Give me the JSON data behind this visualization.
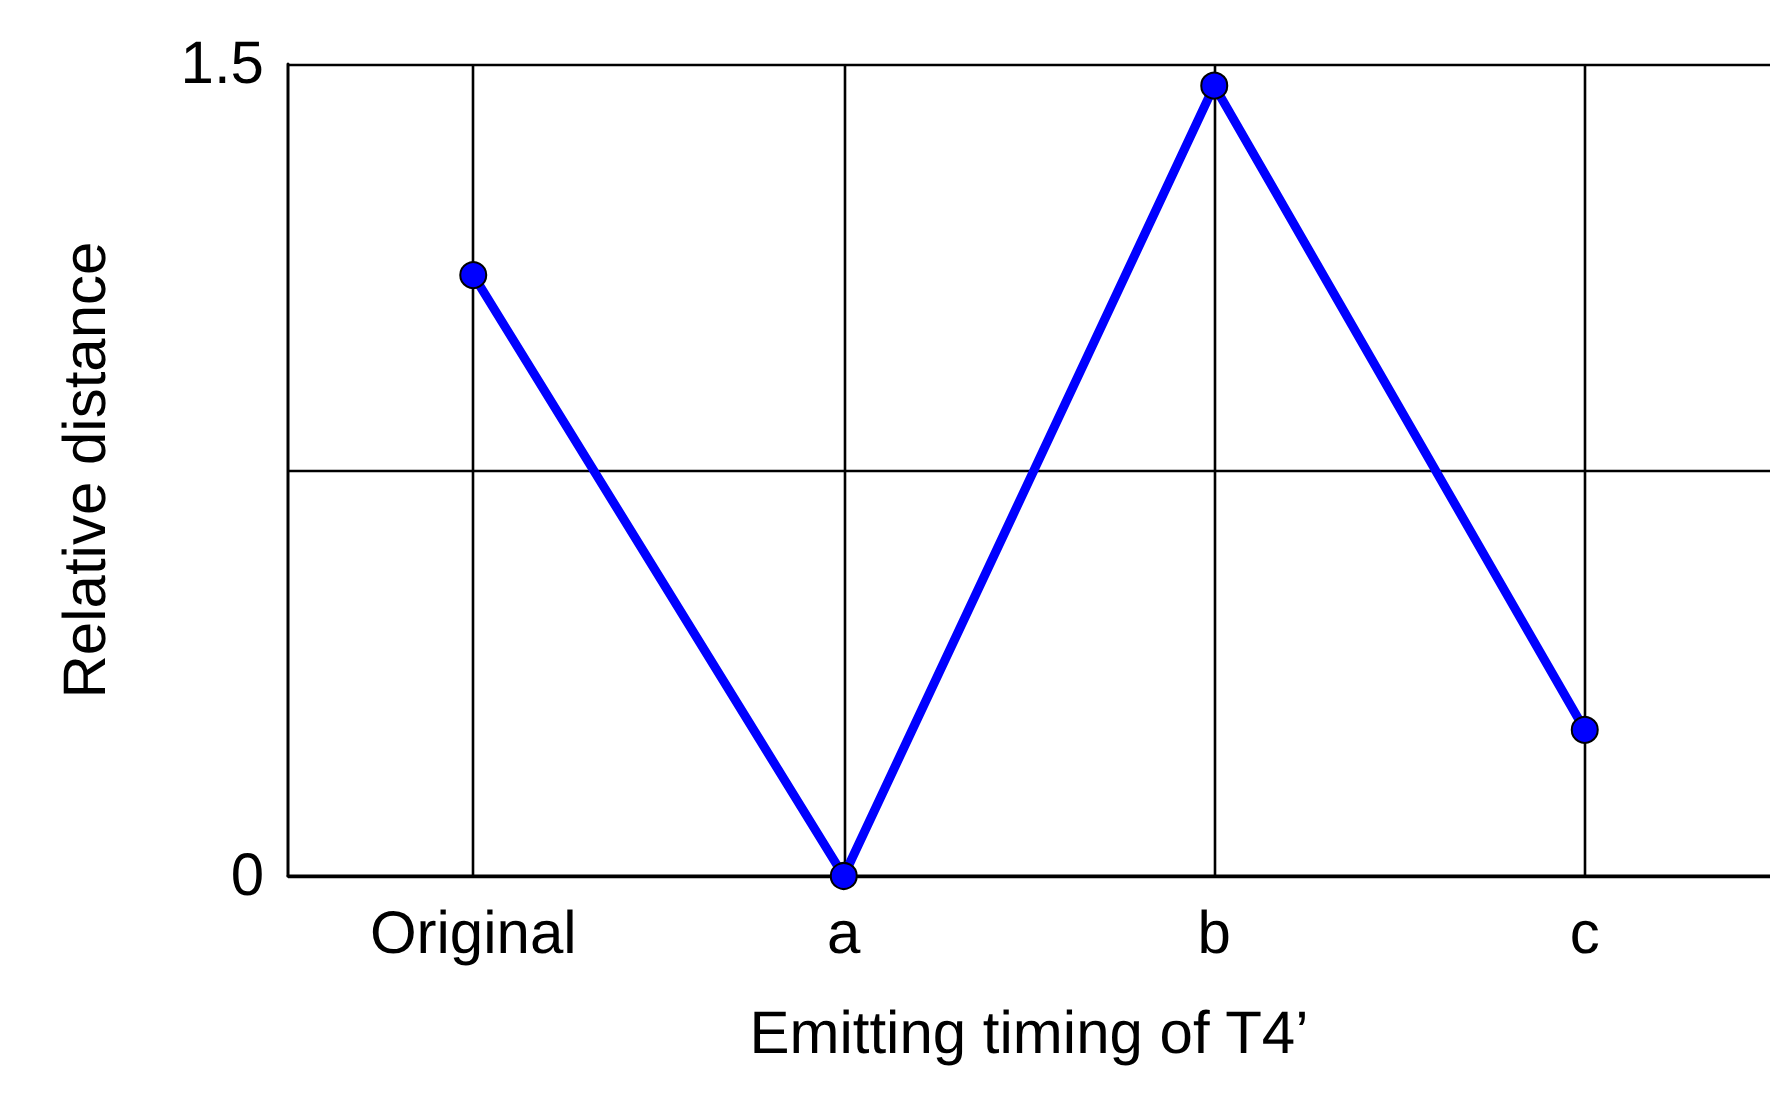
{
  "chart_data": {
    "type": "line",
    "xlabel": "Emitting timing of T4’",
    "ylabel": "Relative distance",
    "categories": [
      "Original",
      "a",
      "b",
      "c"
    ],
    "series": [
      {
        "color": "#0000ff",
        "values": [
          1.11,
          0,
          1.46,
          0.27
        ]
      }
    ],
    "ylim": [
      0,
      1.5
    ],
    "yticks": [
      0,
      {
        "value": 0.75,
        "label": null
      },
      1.5
    ],
    "grid": true,
    "marker": "circle",
    "line_style": "solid"
  }
}
